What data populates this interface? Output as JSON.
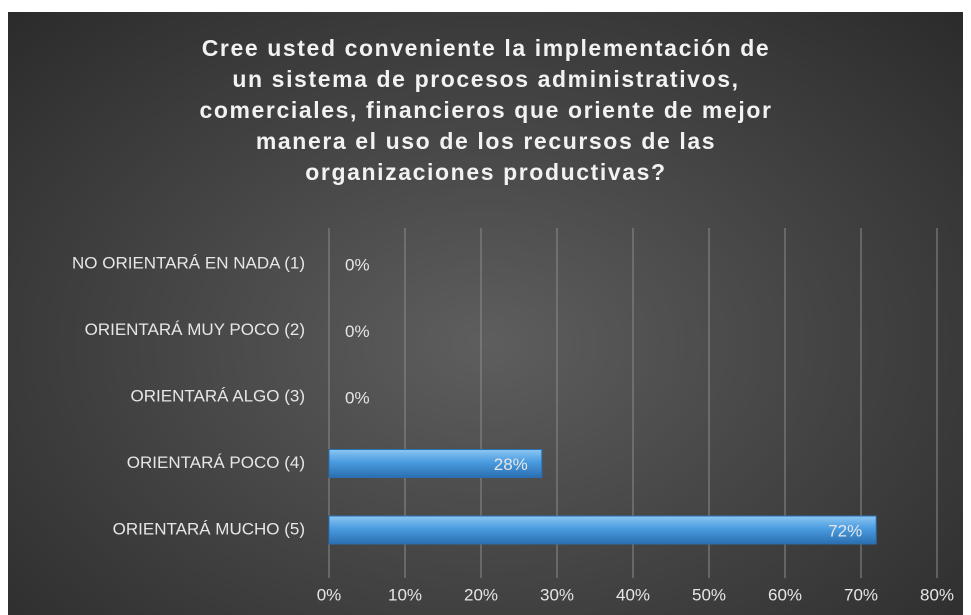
{
  "chart_data": {
    "type": "bar",
    "orientation": "horizontal",
    "title": [
      "Cree usted conveniente la implementación de",
      "un sistema de procesos administrativos,",
      "comerciales, financieros que oriente de mejor",
      "manera el uso de los recursos de las",
      "organizaciones productivas?"
    ],
    "categories": [
      "NO ORIENTARÁ EN NADA (1)",
      "ORIENTARÁ MUY POCO (2)",
      "ORIENTARÁ ALGO (3)",
      "ORIENTARÁ POCO (4)",
      "ORIENTARÁ MUCHO (5)"
    ],
    "values": [
      0,
      0,
      0,
      28,
      72
    ],
    "value_labels": [
      "0%",
      "0%",
      "0%",
      "28%",
      "72%"
    ],
    "color": "#3d8fd6",
    "xlim": [
      0,
      80
    ],
    "xticks": [
      {
        "value": 0,
        "label": "0%"
      },
      {
        "value": 10,
        "label": "10%"
      },
      {
        "value": 20,
        "label": "20%"
      },
      {
        "value": 30,
        "label": "30%"
      },
      {
        "value": 40,
        "label": "40%"
      },
      {
        "value": 50,
        "label": "50%"
      },
      {
        "value": 60,
        "label": "60%"
      },
      {
        "value": 70,
        "label": "70%"
      },
      {
        "value": 80,
        "label": "80%"
      }
    ],
    "grid": true
  }
}
